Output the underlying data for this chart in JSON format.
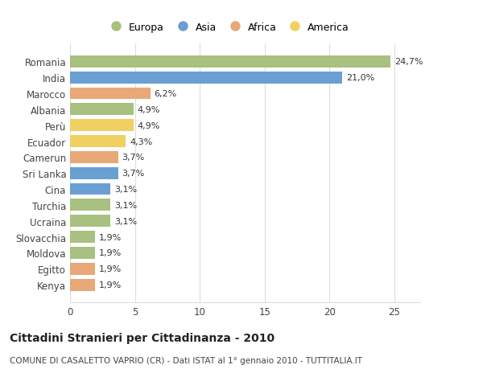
{
  "countries": [
    "Romania",
    "India",
    "Marocco",
    "Albania",
    "Perù",
    "Ecuador",
    "Camerun",
    "Sri Lanka",
    "Cina",
    "Turchia",
    "Ucraina",
    "Slovacchia",
    "Moldova",
    "Egitto",
    "Kenya"
  ],
  "values": [
    24.7,
    21.0,
    6.2,
    4.9,
    4.9,
    4.3,
    3.7,
    3.7,
    3.1,
    3.1,
    3.1,
    1.9,
    1.9,
    1.9,
    1.9
  ],
  "labels": [
    "24,7%",
    "21,0%",
    "6,2%",
    "4,9%",
    "4,9%",
    "4,3%",
    "3,7%",
    "3,7%",
    "3,1%",
    "3,1%",
    "3,1%",
    "1,9%",
    "1,9%",
    "1,9%",
    "1,9%"
  ],
  "continents": [
    "Europa",
    "Asia",
    "Africa",
    "Europa",
    "America",
    "America",
    "Africa",
    "Asia",
    "Asia",
    "Europa",
    "Europa",
    "Europa",
    "Europa",
    "Africa",
    "Africa"
  ],
  "colors": {
    "Europa": "#a8c080",
    "Asia": "#6a9fd4",
    "Africa": "#e8a878",
    "America": "#f0d060"
  },
  "legend_order": [
    "Europa",
    "Asia",
    "Africa",
    "America"
  ],
  "title": "Cittadini Stranieri per Cittadinanza - 2010",
  "subtitle": "COMUNE DI CASALETTO VAPRIO (CR) - Dati ISTAT al 1° gennaio 2010 - TUTTITALIA.IT",
  "xlim": [
    0,
    27
  ],
  "xticks": [
    0,
    5,
    10,
    15,
    20,
    25
  ],
  "bg_color": "#ffffff",
  "grid_color": "#dddddd",
  "bar_height": 0.75
}
